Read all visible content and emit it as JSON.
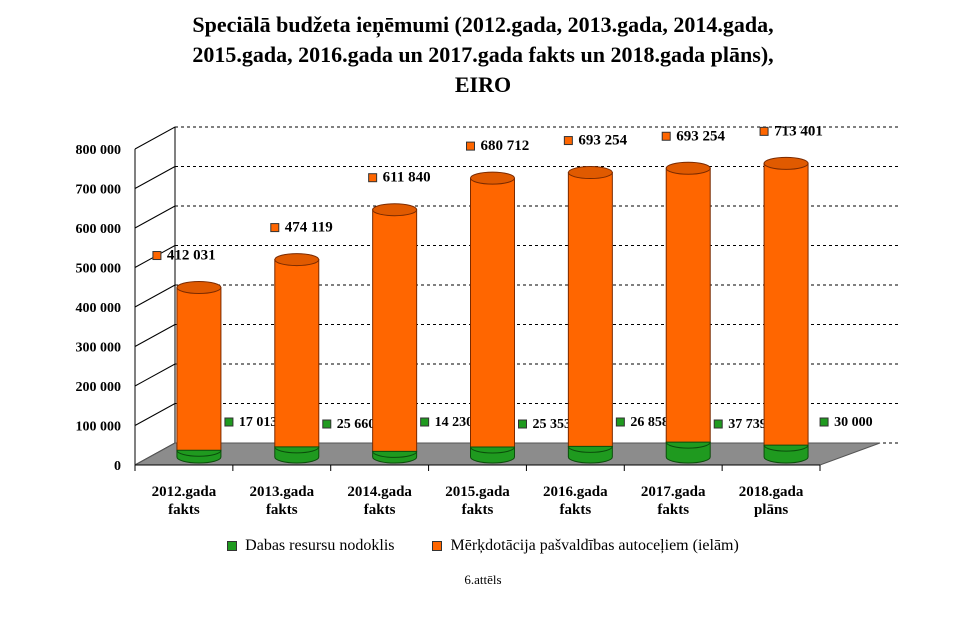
{
  "chart_data": {
    "type": "bar",
    "title_lines": [
      "Speciālā budžeta ieņēmumi (2012.gada, 2013.gada, 2014.gada,",
      "2015.gada, 2016.gada un 2017.gada fakts un 2018.gada plāns),",
      "EIRO"
    ],
    "categories": [
      [
        "2012.gada",
        "fakts"
      ],
      [
        "2013.gada",
        "fakts"
      ],
      [
        "2014.gada",
        "fakts"
      ],
      [
        "2015.gada",
        "fakts"
      ],
      [
        "2016.gada",
        "fakts"
      ],
      [
        "2017.gada",
        "fakts"
      ],
      [
        "2018.gada",
        "plāns"
      ]
    ],
    "series": [
      {
        "name": "Dabas resursu nodoklis",
        "color": "#1f9a1f",
        "values": [
          17013,
          25660,
          14230,
          25353,
          26858,
          37739,
          30000
        ],
        "labels": [
          "17 013",
          "25 660",
          "14 230",
          "25 353",
          "26 858",
          "37 739",
          "30 000"
        ]
      },
      {
        "name": "Mērķdotācija pašvaldības autoceļiem (ielām)",
        "color": "#ff6600",
        "values": [
          412031,
          474119,
          611840,
          680712,
          693254,
          693254,
          713401
        ],
        "labels": [
          "412 031",
          "474 119",
          "611 840",
          "680 712",
          "693 254",
          "693 254",
          "713 401"
        ]
      }
    ],
    "y_ticks": [
      "0",
      "100 000",
      "200 000",
      "300 000",
      "400 000",
      "500 000",
      "600 000",
      "700 000",
      "800 000"
    ],
    "ylim": [
      0,
      800000
    ],
    "stacked": true,
    "style": "3d-cylinder",
    "gridlines": true,
    "legend_position": "bottom"
  },
  "caption": "6.attēls"
}
